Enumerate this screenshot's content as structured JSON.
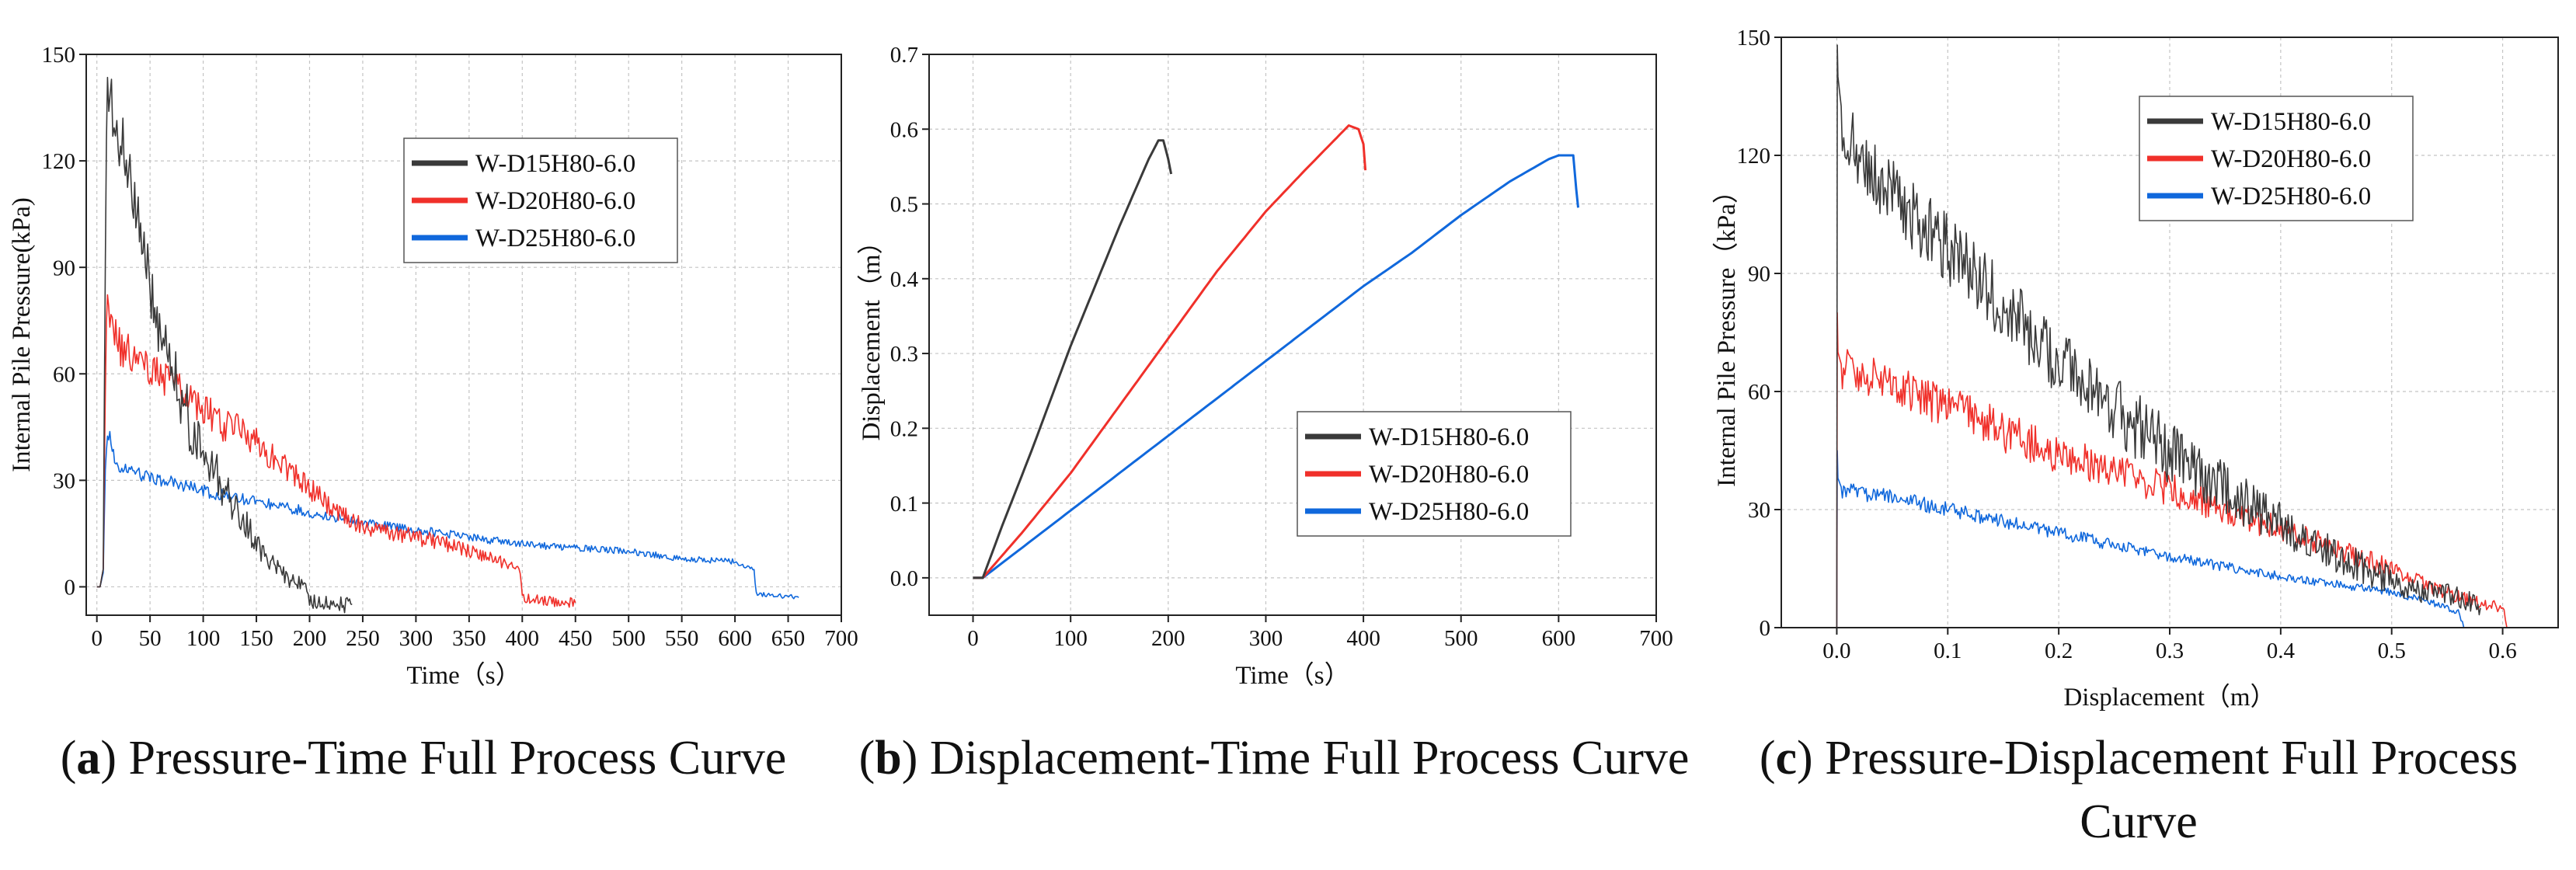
{
  "colors": {
    "black_series": "#3a3a3a",
    "red_series": "#f0302a",
    "blue_series": "#1068dc",
    "grid": "#c4c4c4",
    "axis": "#222222"
  },
  "chart_data": [
    {
      "id": "a",
      "type": "line",
      "xlabel": "Time（s）",
      "ylabel": "Internal Pile Pressure(kPa)",
      "xlim": [
        -10,
        700
      ],
      "ylim": [
        -8,
        150
      ],
      "xticks": [
        0,
        50,
        100,
        150,
        200,
        250,
        300,
        350,
        400,
        450,
        500,
        550,
        600,
        650,
        700
      ],
      "yticks": [
        0,
        30,
        60,
        90,
        120,
        150
      ],
      "legend_position": "top-center",
      "series": [
        {
          "name": "W-D15H80-6.0",
          "color": "#3a3a3a",
          "noise": 10,
          "x": [
            0,
            3,
            6,
            8,
            10,
            15,
            20,
            30,
            40,
            50,
            60,
            80,
            100,
            120,
            140,
            150,
            160,
            170,
            180,
            190,
            195,
            200,
            210,
            220,
            240
          ],
          "y": [
            0,
            0,
            5,
            100,
            145,
            135,
            128,
            118,
            100,
            85,
            72,
            52,
            38,
            27,
            18,
            12,
            8,
            5,
            2,
            1,
            0,
            -4,
            -4.5,
            -4.5,
            -5
          ]
        },
        {
          "name": "W-D20H80-6.0",
          "color": "#f0302a",
          "noise": 6,
          "x": [
            0,
            3,
            6,
            8,
            10,
            20,
            40,
            60,
            80,
            100,
            150,
            200,
            240,
            300,
            330,
            350,
            370,
            390,
            398,
            400,
            420,
            450
          ],
          "y": [
            0,
            0,
            5,
            60,
            80,
            68,
            64,
            60,
            55,
            50,
            40,
            28,
            18,
            14,
            12,
            10,
            8,
            6,
            4,
            -3,
            -4,
            -4.5
          ]
        },
        {
          "name": "W-D25H80-6.0",
          "color": "#1068dc",
          "noise": 3,
          "x": [
            0,
            3,
            6,
            8,
            10,
            20,
            50,
            100,
            150,
            200,
            250,
            300,
            350,
            400,
            450,
            500,
            550,
            600,
            618,
            620,
            640,
            660
          ],
          "y": [
            0,
            0,
            4,
            35,
            45,
            33,
            31,
            27,
            24,
            21,
            18,
            16,
            14,
            12,
            11,
            10,
            8,
            7,
            5,
            -2,
            -2.5,
            -3
          ]
        }
      ]
    },
    {
      "id": "b",
      "type": "line",
      "xlabel": "Time（s）",
      "ylabel": "Displacement（m）",
      "xlim": [
        -45,
        700
      ],
      "ylim": [
        -0.05,
        0.7
      ],
      "xticks": [
        0,
        100,
        200,
        300,
        400,
        500,
        600,
        700
      ],
      "yticks": [
        0.0,
        0.1,
        0.2,
        0.3,
        0.4,
        0.5,
        0.6,
        0.7
      ],
      "legend_position": "center-right",
      "series": [
        {
          "name": "W-D15H80-6.0",
          "color": "#3a3a3a",
          "noise": 0,
          "x": [
            0,
            10,
            30,
            60,
            100,
            150,
            180,
            190,
            195,
            200,
            203
          ],
          "y": [
            0,
            0,
            0.07,
            0.17,
            0.31,
            0.47,
            0.56,
            0.585,
            0.585,
            0.56,
            0.54
          ]
        },
        {
          "name": "W-D20H80-6.0",
          "color": "#f0302a",
          "noise": 0,
          "x": [
            0,
            10,
            50,
            100,
            150,
            200,
            250,
            300,
            340,
            370,
            385,
            395,
            400,
            402
          ],
          "y": [
            0,
            0,
            0.06,
            0.14,
            0.23,
            0.32,
            0.41,
            0.49,
            0.545,
            0.585,
            0.605,
            0.6,
            0.58,
            0.545
          ]
        },
        {
          "name": "W-D25H80-6.0",
          "color": "#1068dc",
          "noise": 0,
          "x": [
            0,
            10,
            50,
            100,
            200,
            300,
            400,
            450,
            500,
            550,
            590,
            600,
            615,
            618,
            620
          ],
          "y": [
            0,
            0,
            0.04,
            0.09,
            0.19,
            0.29,
            0.39,
            0.435,
            0.485,
            0.53,
            0.56,
            0.565,
            0.565,
            0.52,
            0.495
          ]
        }
      ]
    },
    {
      "id": "c",
      "type": "line",
      "xlabel": "Displacement（m）",
      "ylabel": "Internal Pile Pressure（kPa）",
      "xlim": [
        -0.05,
        0.65
      ],
      "ylim": [
        0,
        150
      ],
      "xticks": [
        0.0,
        0.1,
        0.2,
        0.3,
        0.4,
        0.5,
        0.6
      ],
      "yticks": [
        0,
        30,
        60,
        90,
        120,
        150
      ],
      "legend_position": "top-center",
      "series": [
        {
          "name": "W-D15H80-6.0",
          "color": "#3a3a3a",
          "noise": 10,
          "x": [
            0,
            0.0005,
            0.001,
            0.005,
            0.01,
            0.05,
            0.1,
            0.15,
            0.2,
            0.25,
            0.3,
            0.35,
            0.4,
            0.45,
            0.5,
            0.53,
            0.56,
            0.58
          ],
          "y": [
            0,
            148,
            140,
            130,
            125,
            110,
            96,
            82,
            68,
            56,
            45,
            35,
            26,
            18,
            12,
            9,
            8,
            5
          ]
        },
        {
          "name": "W-D20H80-6.0",
          "color": "#f0302a",
          "noise": 6,
          "x": [
            0,
            0.0005,
            0.001,
            0.005,
            0.05,
            0.1,
            0.15,
            0.2,
            0.3,
            0.4,
            0.5,
            0.53,
            0.56,
            0.58,
            0.6,
            0.605
          ],
          "y": [
            0,
            80,
            70,
            66,
            62,
            56,
            50,
            44,
            35,
            25,
            15,
            11,
            8,
            6,
            5,
            0
          ]
        },
        {
          "name": "W-D25H80-6.0",
          "color": "#1068dc",
          "noise": 3,
          "x": [
            0,
            0.0005,
            0.001,
            0.005,
            0.05,
            0.1,
            0.2,
            0.3,
            0.4,
            0.5,
            0.54,
            0.56,
            0.565
          ],
          "y": [
            0,
            45,
            38,
            35,
            33,
            30,
            24,
            18,
            13,
            9,
            6,
            4,
            0
          ]
        }
      ]
    }
  ],
  "captions": [
    {
      "letter": "a",
      "text": "Pressure-Time Full Process Curve"
    },
    {
      "letter": "b",
      "text": "Displacement-Time Full Process Curve"
    },
    {
      "letter": "c",
      "text": "Pressure-Displacement Full Process Curve"
    }
  ]
}
